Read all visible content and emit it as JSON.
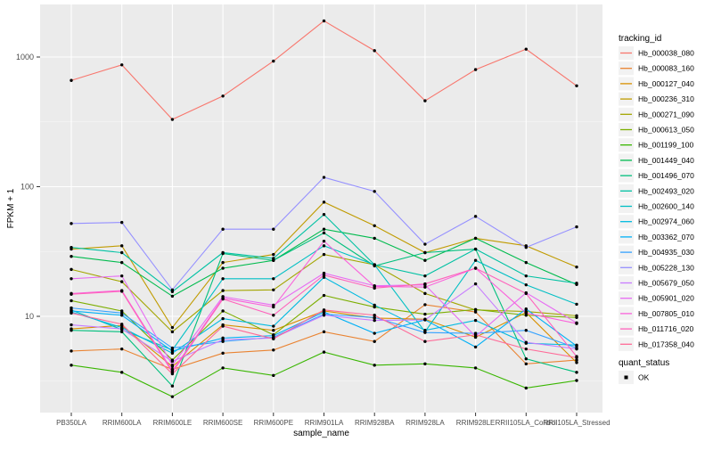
{
  "chart_data": {
    "type": "line",
    "title": "",
    "xlabel": "sample_name",
    "ylabel": "FPKM + 1",
    "y_scale": "log10",
    "y_ticks": [
      {
        "value": 10,
        "label": "10"
      },
      {
        "value": 100,
        "label": "100"
      },
      {
        "value": 1000,
        "label": "1000"
      }
    ],
    "y_minor_breaks": [
      3.162,
      31.62,
      316.2
    ],
    "ylim": [
      1.8,
      2560
    ],
    "grid": "on",
    "legend_position": "right",
    "categories": [
      "PB350LA",
      "RRIM600LA",
      "RRIM600LE",
      "RRIM600SE",
      "RRIM600PE",
      "RRIM901LA",
      "RRIM928BA",
      "RRIM928LA",
      "RRIM928LE",
      "RRII105LA_Control",
      "RRII105LA_Stressed"
    ],
    "series": [
      {
        "name": "Hb_000038_080",
        "color": "#F8766D",
        "values": [
          660,
          870,
          330,
          500,
          930,
          1900,
          1120,
          460,
          800,
          1150,
          600
        ]
      },
      {
        "name": "Hb_000083_160",
        "color": "#EA8331",
        "values": [
          5.4,
          5.6,
          3.9,
          5.2,
          5.5,
          7.6,
          6.4,
          12.3,
          10.8,
          4.3,
          4.6
        ]
      },
      {
        "name": "Hb_000127_040",
        "color": "#D89000",
        "values": [
          8.0,
          8.5,
          4.1,
          8.6,
          7.8,
          11.0,
          9.7,
          9.5,
          6.9,
          10.7,
          4.4
        ]
      },
      {
        "name": "Hb_000236_310",
        "color": "#C09B00",
        "values": [
          33,
          35,
          8.2,
          26,
          30,
          76,
          50,
          31,
          40,
          35,
          24
        ]
      },
      {
        "name": "Hb_000271_090",
        "color": "#A3A500",
        "values": [
          23,
          18.5,
          7.6,
          15.8,
          16,
          30,
          25,
          15,
          11.2,
          10.9,
          10.1
        ]
      },
      {
        "name": "Hb_000613_050",
        "color": "#7CAE00",
        "values": [
          13.2,
          11.0,
          4.6,
          11.0,
          7.2,
          14.5,
          11.8,
          10.4,
          11.3,
          10.2,
          9.8
        ]
      },
      {
        "name": "Hb_001199_100",
        "color": "#39B600",
        "values": [
          4.2,
          3.7,
          2.4,
          4.0,
          3.5,
          5.3,
          4.2,
          4.3,
          4.0,
          2.8,
          3.2
        ]
      },
      {
        "name": "Hb_001449_040",
        "color": "#00BB4E",
        "values": [
          29,
          26,
          14.3,
          23.5,
          27,
          47,
          40,
          27,
          40,
          26,
          17.6
        ]
      },
      {
        "name": "Hb_001496_070",
        "color": "#00BF7D",
        "values": [
          7.8,
          7.6,
          2.9,
          30.5,
          27,
          44,
          24.5,
          31,
          33,
          4.7,
          3.7
        ]
      },
      {
        "name": "Hb_002493_020",
        "color": "#00C1A3",
        "values": [
          34,
          31,
          15.5,
          31,
          28,
          61,
          25,
          20.5,
          33,
          20.5,
          18
        ]
      },
      {
        "name": "Hb_002600_140",
        "color": "#00BFC4",
        "values": [
          11.2,
          7.9,
          5.5,
          19.5,
          19.5,
          35,
          25,
          7.6,
          27,
          17.5,
          12.4
        ]
      },
      {
        "name": "Hb_002974_060",
        "color": "#00BAE0",
        "values": [
          10.8,
          8.2,
          5.2,
          9.6,
          8.4,
          20,
          12.2,
          7.8,
          9.3,
          6.2,
          6.0
        ]
      },
      {
        "name": "Hb_003362_070",
        "color": "#00B0F6",
        "values": [
          11.0,
          10.2,
          5.4,
          6.8,
          7.1,
          10.8,
          7.4,
          9.4,
          5.8,
          11.4,
          5.9
        ]
      },
      {
        "name": "Hb_004935_030",
        "color": "#35A2FF",
        "values": [
          11.6,
          10.6,
          5.7,
          6.4,
          6.9,
          10.4,
          9.8,
          7.5,
          7.4,
          7.8,
          5.7
        ]
      },
      {
        "name": "Hb_005228_130",
        "color": "#9590FF",
        "values": [
          52,
          53,
          16,
          47,
          47,
          118,
          92,
          36,
          59,
          34,
          49
        ]
      },
      {
        "name": "Hb_005679_050",
        "color": "#C77CFF",
        "values": [
          8.6,
          8.0,
          4.5,
          6.6,
          6.8,
          10.2,
          9.3,
          9.4,
          17.8,
          6.3,
          5.6
        ]
      },
      {
        "name": "Hb_005901_020",
        "color": "#E76BF3",
        "values": [
          19.5,
          20.5,
          4.2,
          14.2,
          12.2,
          21.5,
          17.2,
          17.5,
          7.0,
          15.2,
          8.9
        ]
      },
      {
        "name": "Hb_007805_010",
        "color": "#FA62DB",
        "values": [
          15.0,
          15.8,
          3.8,
          13.8,
          11.8,
          38,
          17.0,
          16.8,
          23.5,
          10.6,
          8.8
        ]
      },
      {
        "name": "Hb_011716_020",
        "color": "#FF62BC",
        "values": [
          14.8,
          15.6,
          3.7,
          13.6,
          10.2,
          20.8,
          16.5,
          17.8,
          23.5,
          15.0,
          4.9
        ]
      },
      {
        "name": "Hb_017358_040",
        "color": "#FF6A98",
        "values": [
          10.6,
          8.7,
          3.6,
          8.4,
          6.7,
          11.2,
          10.2,
          6.4,
          7.2,
          5.6,
          4.8
        ]
      }
    ]
  },
  "legend": {
    "tracking_title": "tracking_id",
    "quant_title": "quant_status",
    "quant_items": [
      {
        "label": "OK"
      }
    ]
  },
  "colors": {
    "panel_bg": "#EBEBEB",
    "grid_major": "#FFFFFF",
    "grid_minor": "#FFFFFF",
    "tick_label": "#4D4D4D",
    "axis_title": "#000000",
    "point": "#000000",
    "legend_key_bg": "#F2F2F2",
    "tick_mark": "#333333"
  }
}
